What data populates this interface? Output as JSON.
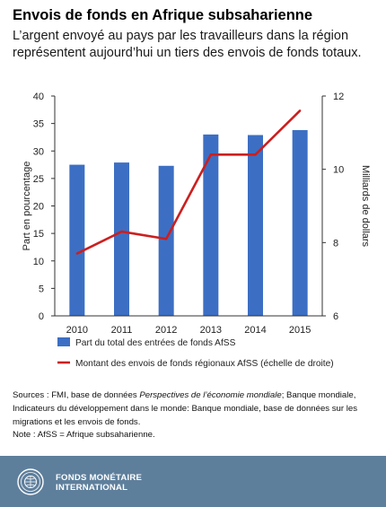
{
  "header": {
    "title": "Envois de fonds en Afrique subsaharienne",
    "subtitle": "L’argent envoyé au pays par les travailleurs dans la région représentent aujourd’hui un tiers des envois de fonds totaux."
  },
  "chart_data": {
    "type": "bar",
    "categories": [
      "2010",
      "2011",
      "2012",
      "2013",
      "2014",
      "2015"
    ],
    "series": [
      {
        "name": "Part du total des entrées de fonds AfSS",
        "type": "bar",
        "axis": "left",
        "color": "#3c6fc4",
        "values": [
          27.5,
          27.9,
          27.3,
          33.0,
          32.9,
          33.8
        ]
      },
      {
        "name": "Montant des envois de fonds régionaux AfSS (échelle de droite)",
        "type": "line",
        "axis": "right",
        "color": "#cc1f1f",
        "values": [
          7.7,
          8.3,
          8.1,
          10.4,
          10.4,
          11.6
        ]
      }
    ],
    "ylabel": "Part en pourcentage",
    "ylim": [
      0,
      40
    ],
    "yticks": [
      "0",
      "5",
      "10",
      "15",
      "20",
      "25",
      "30",
      "35",
      "40"
    ],
    "y2label": "Milliards de dollars",
    "y2lim": [
      6,
      12
    ],
    "y2ticks": [
      "6",
      "8",
      "10",
      "12"
    ],
    "grid": false,
    "legend_position": "bottom"
  },
  "sources": {
    "line1_a": "Sources : FMI, base de données ",
    "line1_em": "Perspectives de l’économie mondiale",
    "line1_b": "; Banque mondiale, Indicateurs du développement dans le monde: Banque mondiale, base de données sur les migrations et les envois de fonds.",
    "note": "Note : AfSS = Afrique subsaharienne."
  },
  "footer": {
    "org_line1": "FONDS MONÉTAIRE",
    "org_line2": "INTERNATIONAL",
    "logo_icon": "imf-seal-icon"
  }
}
